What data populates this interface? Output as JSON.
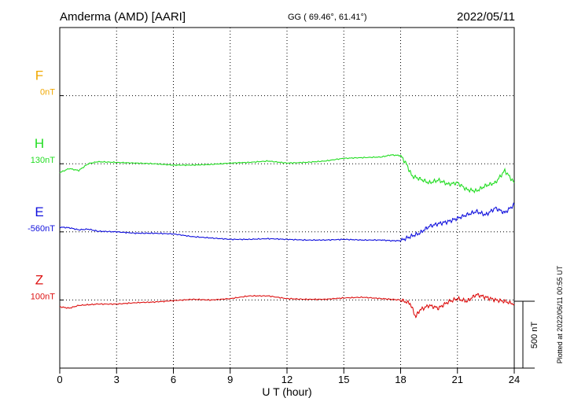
{
  "header": {
    "station": "Amderma (AMD)  [AARI]",
    "coords": "GG ( 69.46°,  61.41°)",
    "date": "2022/05/11"
  },
  "footer_note": "Plotted at 2022/06/11 00:55 UT",
  "scale_label": "500 nT",
  "chart_data": {
    "type": "line",
    "xlabel": "U T (hour)",
    "ylabel": "",
    "xlim": [
      0,
      24
    ],
    "x_ticks": [
      "0",
      "3",
      "6",
      "9",
      "12",
      "15",
      "18",
      "21",
      "24"
    ],
    "grid": true,
    "panel_unit_nT": 100,
    "series": [
      {
        "name": "F",
        "baseline_label": "0nT",
        "color": "#f0a800",
        "panel": 1,
        "x": [],
        "values": []
      },
      {
        "name": "H",
        "baseline_label": "130nT",
        "color": "#22dd22",
        "panel": 2,
        "x": [
          0,
          0.5,
          1,
          1.5,
          2,
          3,
          4,
          5,
          6,
          7,
          8,
          9,
          10,
          11,
          12,
          13,
          14,
          15,
          16,
          17,
          17.5,
          18,
          18.3,
          18.6,
          19,
          19.5,
          20,
          20.5,
          21,
          21.5,
          22,
          22.5,
          23,
          23.5,
          24
        ],
        "values": [
          -13,
          -7,
          -10,
          0,
          3,
          2,
          1,
          0,
          -2,
          -2,
          -1,
          1,
          2,
          4,
          1,
          2,
          4,
          8,
          9,
          10,
          13,
          12,
          0,
          -18,
          -22,
          -28,
          -24,
          -30,
          -28,
          -38,
          -40,
          -32,
          -28,
          -10,
          -28
        ]
      },
      {
        "name": "E",
        "baseline_label": "-560nT",
        "color": "#1010dd",
        "panel": 3,
        "x": [
          0,
          0.5,
          1,
          1.5,
          2,
          3,
          4,
          5,
          6,
          7,
          8,
          9,
          10,
          11,
          12,
          13,
          14,
          15,
          16,
          17,
          17.5,
          18,
          18.5,
          19,
          19.5,
          20,
          20.5,
          21,
          21.5,
          22,
          22.5,
          23,
          23.5,
          24
        ],
        "values": [
          7,
          6,
          3,
          4,
          1,
          0,
          -2,
          -2,
          -3,
          -7,
          -9,
          -11,
          -11,
          -10,
          -11,
          -12,
          -12,
          -11,
          -12,
          -12,
          -13,
          -13,
          -7,
          -2,
          8,
          12,
          15,
          20,
          25,
          30,
          25,
          35,
          28,
          40
        ]
      },
      {
        "name": "Z",
        "baseline_label": "100nT",
        "color": "#dd1111",
        "panel": 4,
        "x": [
          0,
          0.5,
          1,
          1.5,
          2,
          3,
          4,
          5,
          6,
          7,
          8,
          9,
          10,
          11,
          12,
          13,
          14,
          15,
          16,
          17,
          17.5,
          18,
          18.5,
          18.8,
          19,
          19.5,
          20,
          20.5,
          21,
          21.5,
          22,
          22.5,
          23,
          23.5,
          24
        ],
        "values": [
          -10,
          -12,
          -8,
          -7,
          -6,
          -6,
          -4,
          -3,
          -1,
          1,
          0,
          2,
          6,
          6,
          2,
          1,
          1,
          3,
          4,
          2,
          1,
          0,
          -5,
          -25,
          -15,
          -8,
          -12,
          -3,
          2,
          -2,
          8,
          4,
          0,
          -2,
          -6
        ]
      }
    ]
  }
}
